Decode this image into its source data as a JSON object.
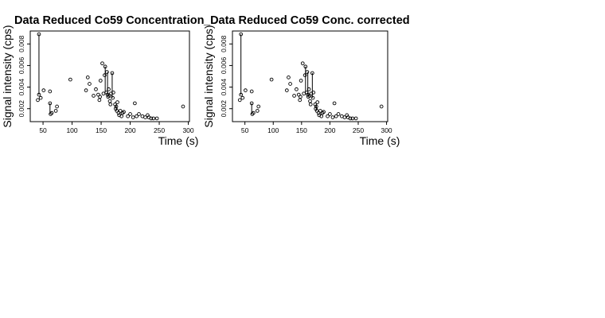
{
  "chart_data": [
    {
      "type": "scatter",
      "title": "Data Reduced Co59 Concentration",
      "xlabel": "Time (s)",
      "ylabel": "Signal intensity (cps)",
      "xlim": [
        28,
        302
      ],
      "ylim": [
        0.0008,
        0.0092
      ],
      "xticks": [
        50,
        100,
        150,
        200,
        250,
        300
      ],
      "yticks": [
        0.002,
        0.004,
        0.006,
        0.008
      ],
      "xtick_labels": [
        "50",
        "100",
        "150",
        "200",
        "250",
        "300"
      ],
      "ytick_labels": [
        "0.002",
        "0.004",
        "0.006",
        "0.008"
      ],
      "grid": false,
      "marker": "open-circle",
      "points": [
        [
          43,
          0.0089
        ],
        [
          43,
          0.0033
        ],
        [
          41,
          0.0028
        ],
        [
          46,
          0.003
        ],
        [
          51,
          0.0037
        ],
        [
          62,
          0.0036
        ],
        [
          62,
          0.0025
        ],
        [
          63,
          0.0015
        ],
        [
          65,
          0.0016
        ],
        [
          72,
          0.0018
        ],
        [
          74,
          0.0022
        ],
        [
          97,
          0.0047
        ],
        [
          124,
          0.0037
        ],
        [
          127,
          0.0049
        ],
        [
          130,
          0.0043
        ],
        [
          137,
          0.0032
        ],
        [
          141,
          0.0038
        ],
        [
          145,
          0.0033
        ],
        [
          147,
          0.0028
        ],
        [
          148,
          0.0031
        ],
        [
          149,
          0.0046
        ],
        [
          152,
          0.0062
        ],
        [
          154,
          0.0034
        ],
        [
          156,
          0.0051
        ],
        [
          157,
          0.0059
        ],
        [
          159,
          0.0035
        ],
        [
          160,
          0.0054
        ],
        [
          161,
          0.0033
        ],
        [
          162,
          0.0031
        ],
        [
          163,
          0.0038
        ],
        [
          164,
          0.0032
        ],
        [
          165,
          0.0027
        ],
        [
          166,
          0.0024
        ],
        [
          167,
          0.0034
        ],
        [
          169,
          0.0053
        ],
        [
          170,
          0.003
        ],
        [
          171,
          0.0035
        ],
        [
          174,
          0.0024
        ],
        [
          175,
          0.002
        ],
        [
          176,
          0.0022
        ],
        [
          177,
          0.0018
        ],
        [
          178,
          0.0026
        ],
        [
          180,
          0.0016
        ],
        [
          181,
          0.0014
        ],
        [
          183,
          0.0018
        ],
        [
          185,
          0.0013
        ],
        [
          187,
          0.0016
        ],
        [
          189,
          0.0017
        ],
        [
          196,
          0.0013
        ],
        [
          200,
          0.0015
        ],
        [
          205,
          0.0012
        ],
        [
          208,
          0.0025
        ],
        [
          211,
          0.0013
        ],
        [
          215,
          0.0015
        ],
        [
          221,
          0.0013
        ],
        [
          226,
          0.0012
        ],
        [
          230,
          0.0014
        ],
        [
          232,
          0.0012
        ],
        [
          236,
          0.0011
        ],
        [
          240,
          0.0011
        ],
        [
          246,
          0.0011
        ],
        [
          291,
          0.0022
        ]
      ],
      "segments": [
        [
          43,
          0.0033,
          43,
          0.0089
        ],
        [
          62,
          0.0015,
          62,
          0.0025
        ],
        [
          157,
          0.0035,
          157,
          0.0059
        ],
        [
          161,
          0.0033,
          161,
          0.0054
        ],
        [
          169,
          0.003,
          169,
          0.0053
        ],
        [
          176,
          0.0018,
          176,
          0.0024
        ]
      ]
    },
    {
      "type": "scatter",
      "title": "_Data Reduced Co59 Conc. corrected",
      "xlabel": "Time (s)",
      "ylabel": "Signal intensity (cps)",
      "xlim": [
        28,
        302
      ],
      "ylim": [
        0.0008,
        0.0092
      ],
      "xticks": [
        50,
        100,
        150,
        200,
        250,
        300
      ],
      "yticks": [
        0.002,
        0.004,
        0.006,
        0.008
      ],
      "xtick_labels": [
        "50",
        "100",
        "150",
        "200",
        "250",
        "300"
      ],
      "ytick_labels": [
        "0.002",
        "0.004",
        "0.006",
        "0.008"
      ],
      "grid": false,
      "marker": "open-circle",
      "points": [
        [
          43,
          0.0089
        ],
        [
          43,
          0.0033
        ],
        [
          41,
          0.0028
        ],
        [
          46,
          0.003
        ],
        [
          51,
          0.0037
        ],
        [
          62,
          0.0036
        ],
        [
          62,
          0.0025
        ],
        [
          63,
          0.0015
        ],
        [
          65,
          0.0016
        ],
        [
          72,
          0.0018
        ],
        [
          74,
          0.0022
        ],
        [
          97,
          0.0047
        ],
        [
          124,
          0.0037
        ],
        [
          127,
          0.0049
        ],
        [
          130,
          0.0043
        ],
        [
          137,
          0.0032
        ],
        [
          141,
          0.0038
        ],
        [
          145,
          0.0033
        ],
        [
          147,
          0.0028
        ],
        [
          148,
          0.0031
        ],
        [
          149,
          0.0046
        ],
        [
          152,
          0.0062
        ],
        [
          154,
          0.0034
        ],
        [
          156,
          0.0051
        ],
        [
          157,
          0.0059
        ],
        [
          159,
          0.0035
        ],
        [
          160,
          0.0054
        ],
        [
          161,
          0.0033
        ],
        [
          162,
          0.0031
        ],
        [
          163,
          0.0038
        ],
        [
          164,
          0.0032
        ],
        [
          165,
          0.0027
        ],
        [
          166,
          0.0024
        ],
        [
          167,
          0.0034
        ],
        [
          169,
          0.0053
        ],
        [
          170,
          0.003
        ],
        [
          171,
          0.0035
        ],
        [
          174,
          0.0024
        ],
        [
          175,
          0.002
        ],
        [
          176,
          0.0022
        ],
        [
          177,
          0.0018
        ],
        [
          178,
          0.0026
        ],
        [
          180,
          0.0016
        ],
        [
          181,
          0.0014
        ],
        [
          183,
          0.0018
        ],
        [
          185,
          0.0013
        ],
        [
          187,
          0.0016
        ],
        [
          189,
          0.0017
        ],
        [
          196,
          0.0013
        ],
        [
          200,
          0.0015
        ],
        [
          205,
          0.0012
        ],
        [
          208,
          0.0025
        ],
        [
          211,
          0.0013
        ],
        [
          215,
          0.0015
        ],
        [
          221,
          0.0013
        ],
        [
          226,
          0.0012
        ],
        [
          230,
          0.0014
        ],
        [
          232,
          0.0012
        ],
        [
          236,
          0.0011
        ],
        [
          240,
          0.0011
        ],
        [
          246,
          0.0011
        ],
        [
          291,
          0.0022
        ]
      ],
      "segments": [
        [
          43,
          0.0033,
          43,
          0.0089
        ],
        [
          62,
          0.0015,
          62,
          0.0025
        ],
        [
          157,
          0.0035,
          157,
          0.0059
        ],
        [
          161,
          0.0033,
          161,
          0.0054
        ],
        [
          169,
          0.003,
          169,
          0.0053
        ],
        [
          176,
          0.0018,
          176,
          0.0024
        ]
      ]
    }
  ]
}
